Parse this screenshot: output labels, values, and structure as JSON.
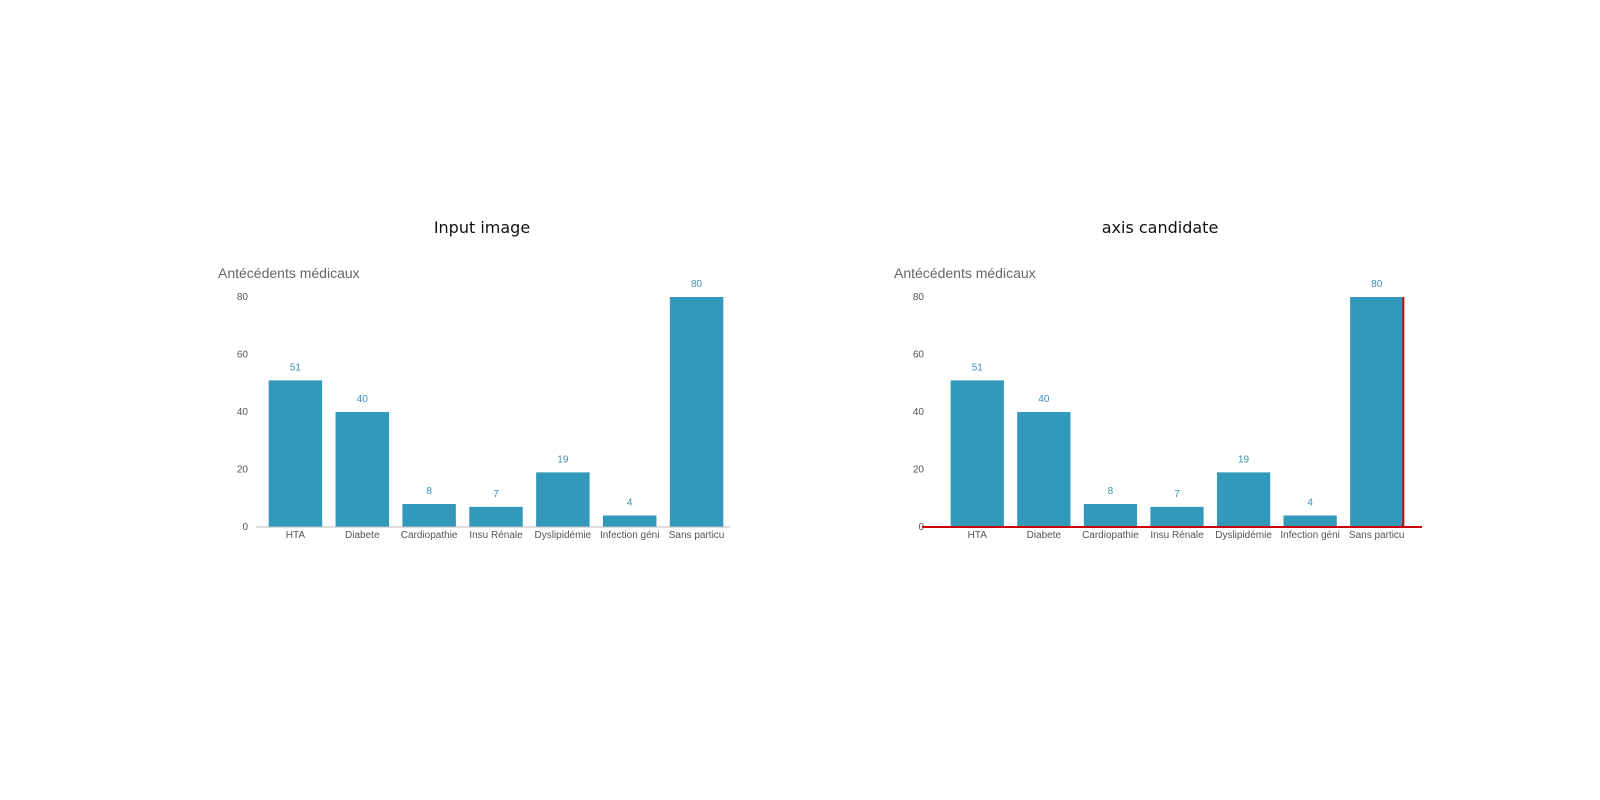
{
  "panels": [
    {
      "title": "Input image",
      "highlight": false
    },
    {
      "title": "axis candidate",
      "highlight": true
    }
  ],
  "colors": {
    "bar": "#3399bb",
    "axis": "#bbbbbb",
    "highlight": "#cc0000",
    "data_label": "#3a8fb5"
  },
  "chart_data": [
    {
      "type": "bar",
      "title": "Antécédents médicaux",
      "categories": [
        "HTA",
        "Diabete",
        "Cardiopathie",
        "Insu Rénale",
        "Dyslipidémie",
        "Infection géni",
        "Sans particu"
      ],
      "values": [
        51,
        40,
        8,
        7,
        19,
        4,
        80
      ],
      "data_labels": [
        "51",
        "40",
        "8",
        "7",
        "19",
        "4",
        "80"
      ],
      "ylim": [
        0,
        80
      ],
      "yticks": [
        0,
        20,
        40,
        60,
        80
      ],
      "grid": false
    },
    {
      "type": "bar",
      "title": "Antécédents médicaux",
      "categories": [
        "HTA",
        "Diabete",
        "Cardiopathie",
        "Insu Rénale",
        "Dyslipidémie",
        "Infection géni",
        "Sans particu"
      ],
      "values": [
        51,
        40,
        8,
        7,
        19,
        4,
        80
      ],
      "data_labels": [
        "51",
        "40",
        "8",
        "7",
        "19",
        "4",
        "80"
      ],
      "ylim": [
        0,
        80
      ],
      "yticks": [
        0,
        20,
        40,
        60,
        80
      ],
      "grid": false
    }
  ]
}
